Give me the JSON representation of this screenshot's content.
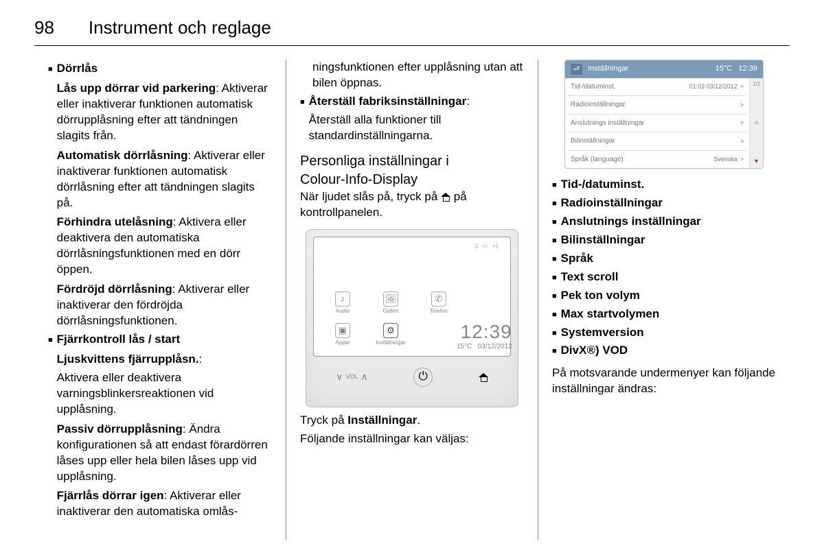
{
  "page": {
    "number": "98",
    "chapter": "Instrument och reglage"
  },
  "col1": {
    "dorrlas_heading": "Dörrlås",
    "las_upp_label": "Lås upp dörrar vid parkering",
    "las_upp_text": ": Aktiverar eller inaktiverar funktionen automatisk dörrupplåsning efter att tändningen slagits från.",
    "auto_lock_label": "Automatisk dörrlåsning",
    "auto_lock_text": ": Aktiverar eller inaktiverar funktionen automatisk dörrlåsning efter att tändningen slagits på.",
    "prevent_label": "Förhindra utelåsning",
    "prevent_text": ": Aktivera eller deaktivera den automatiska dörrlåsningsfunktionen med en dörr öppen.",
    "delayed_label": "Fördröjd dörrlåsning",
    "delayed_text": ": Aktiverar eller inaktiverar den fördröjda dörrlåsningsfunktionen.",
    "remote_heading": "Fjärrkontroll lås / start",
    "remote_light_label": "Ljuskvittens fjärrupplåsn.",
    "remote_light_text": "Aktivera eller deaktivera varningsblinkersreaktionen vid upplåsning.",
    "passive_label": "Passiv dörrupplåsning",
    "passive_text": ": Ändra konfigurationen så att endast förardörren låses upp eller hela bilen låses upp vid upplåsning.",
    "relock_label": "Fjärrlås dörrar igen",
    "relock_text": ": Aktiverar eller inaktiverar den automatiska omlås-"
  },
  "col2": {
    "cont_text": "ningsfunktionen efter upplåsning utan att bilen öppnas.",
    "factory_label": "Återställ fabriksinställningar",
    "factory_text": "Återställ alla funktioner till standardinställningarna.",
    "section_heading_1": "Personliga inställningar i",
    "section_heading_2": "Colour-Info-Display",
    "section_text_pre": "När ljudet slås på, tryck på ",
    "section_text_post": " på kontrollpanelen.",
    "console": {
      "apps": [
        "Audio",
        "Galleri",
        "Telefon",
        "Appar",
        "Inställningar"
      ],
      "time": "12:39",
      "temp": "15°C",
      "date": "03/12/2012",
      "vol": "VOL"
    },
    "press_text_pre": "Tryck på ",
    "press_text_bold": "Inställningar",
    "press_text_post": ".",
    "following_text": "Följande inställningar kan väljas:"
  },
  "col3": {
    "panel": {
      "title": "Inställningar",
      "temp": "15°C",
      "time": "12:39",
      "page_indicator": "1/2",
      "rows": [
        {
          "label": "Tid-/datuminst.",
          "value": "01:03  03/12/2012",
          "arrow": ">"
        },
        {
          "label": "Radioinställningar",
          "value": "",
          "arrow": ">"
        },
        {
          "label": "Anslutnings inställningar",
          "value": "",
          "arrow": ">"
        },
        {
          "label": "Bilinställningar",
          "value": "",
          "arrow": ">"
        },
        {
          "label": "Språk (language)",
          "value": "Svenska",
          "arrow": ">"
        }
      ]
    },
    "items": [
      "Tid-/datuminst.",
      "Radioinställningar",
      "Anslutnings inställningar",
      "Bilinställningar",
      "Språk",
      "Text scroll",
      "Pek ton volym",
      "Max startvolymen",
      "Systemversion",
      "DivX®) VOD"
    ],
    "after_text": "På motsvarande undermenyer kan följande inställningar ändras:"
  }
}
